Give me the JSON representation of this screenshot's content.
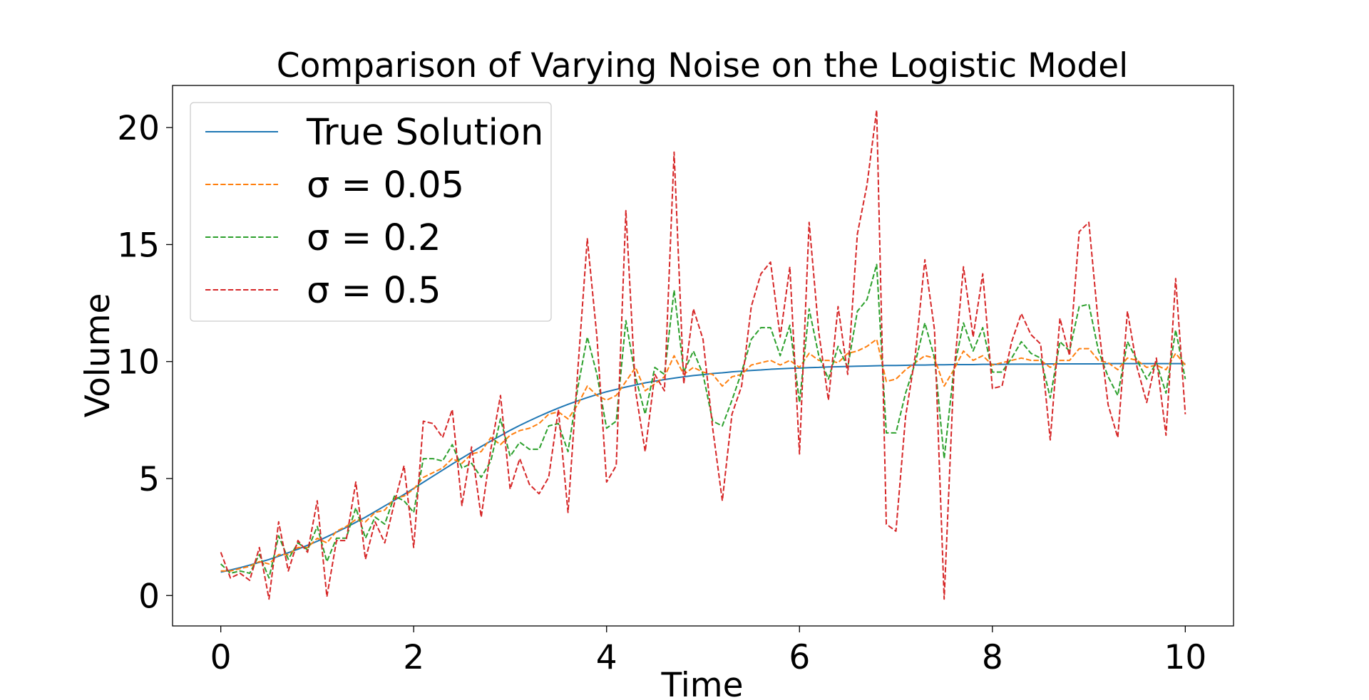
{
  "chart_data": {
    "type": "line",
    "title": "Comparison of Varying Noise on the Logistic Model",
    "xlabel": "Time",
    "ylabel": "Volume",
    "xlim": [
      -0.5,
      10.5
    ],
    "ylim": [
      -1.3,
      21.8
    ],
    "xticks": [
      0,
      2,
      4,
      6,
      8,
      10
    ],
    "yticks": [
      0,
      5,
      10,
      15,
      20
    ],
    "grid": false,
    "legend_position": "top-left",
    "x": [
      0.0,
      0.1,
      0.2,
      0.3,
      0.4,
      0.5,
      0.6,
      0.7,
      0.8,
      0.9,
      1.0,
      1.1,
      1.2,
      1.3,
      1.4,
      1.5,
      1.6,
      1.7,
      1.8,
      1.9,
      2.0,
      2.1,
      2.2,
      2.3,
      2.4,
      2.5,
      2.6,
      2.7,
      2.8,
      2.9,
      3.0,
      3.1,
      3.2,
      3.3,
      3.4,
      3.5,
      3.6,
      3.7,
      3.8,
      3.9,
      4.0,
      4.1,
      4.2,
      4.3,
      4.4,
      4.5,
      4.6,
      4.7,
      4.8,
      4.9,
      5.0,
      5.1,
      5.2,
      5.3,
      5.4,
      5.5,
      5.6,
      5.7,
      5.8,
      5.9,
      6.0,
      6.1,
      6.2,
      6.3,
      6.4,
      6.5,
      6.6,
      6.7,
      6.8,
      6.9,
      7.0,
      7.1,
      7.2,
      7.3,
      7.4,
      7.5,
      7.6,
      7.7,
      7.8,
      7.9,
      8.0,
      8.1,
      8.2,
      8.3,
      8.4,
      8.5,
      8.6,
      8.7,
      8.8,
      8.9,
      9.0,
      9.1,
      9.2,
      9.3,
      9.4,
      9.5,
      9.6,
      9.7,
      9.8,
      9.9,
      10.0
    ],
    "series": [
      {
        "name": "True Solution",
        "color": "#1f77b4",
        "style": "solid",
        "values": [
          1.0,
          1.09,
          1.19,
          1.3,
          1.42,
          1.54,
          1.68,
          1.83,
          1.98,
          2.15,
          2.32,
          2.51,
          2.71,
          2.91,
          3.13,
          3.35,
          3.59,
          3.83,
          4.07,
          4.32,
          4.58,
          4.84,
          5.1,
          5.36,
          5.62,
          5.87,
          6.12,
          6.37,
          6.6,
          6.83,
          7.06,
          7.27,
          7.47,
          7.66,
          7.84,
          8.01,
          8.17,
          8.32,
          8.46,
          8.59,
          8.71,
          8.81,
          8.91,
          9.0,
          9.09,
          9.16,
          9.23,
          9.29,
          9.35,
          9.4,
          9.44,
          9.49,
          9.52,
          9.56,
          9.59,
          9.62,
          9.64,
          9.67,
          9.69,
          9.71,
          9.72,
          9.74,
          9.75,
          9.77,
          9.78,
          9.79,
          9.8,
          9.81,
          9.82,
          9.83,
          9.83,
          9.84,
          9.85,
          9.85,
          9.86,
          9.86,
          9.87,
          9.87,
          9.87,
          9.88,
          9.88,
          9.88,
          9.89,
          9.89,
          9.89,
          9.89,
          9.9,
          9.9,
          9.9,
          9.9,
          9.9,
          9.9,
          9.91,
          9.91,
          9.91,
          9.91,
          9.91,
          9.91,
          9.91,
          9.91,
          9.91
        ]
      },
      {
        "name": "σ = 0.05",
        "color": "#ff7f0e",
        "style": "dashed",
        "values": [
          1.05,
          1.05,
          1.15,
          1.25,
          1.45,
          1.35,
          1.75,
          1.75,
          2.05,
          2.05,
          2.45,
          2.25,
          2.75,
          2.95,
          3.25,
          3.15,
          3.55,
          3.65,
          4.15,
          4.25,
          4.55,
          5.05,
          5.25,
          5.45,
          5.85,
          5.65,
          6.05,
          6.15,
          6.75,
          6.45,
          6.85,
          7.05,
          7.15,
          7.35,
          7.75,
          7.85,
          7.55,
          8.15,
          8.95,
          8.55,
          8.35,
          8.55,
          9.15,
          9.75,
          8.75,
          9.05,
          9.35,
          10.25,
          9.45,
          9.75,
          9.55,
          9.45,
          8.95,
          9.35,
          9.45,
          9.85,
          9.95,
          10.05,
          9.85,
          10.05,
          9.75,
          10.35,
          10.05,
          10.05,
          9.95,
          10.35,
          10.45,
          10.65,
          10.95,
          9.15,
          9.25,
          9.65,
          9.95,
          10.25,
          10.15,
          8.95,
          9.65,
          10.45,
          10.05,
          10.25,
          9.85,
          9.95,
          10.05,
          10.15,
          10.05,
          10.05,
          9.75,
          10.05,
          10.05,
          10.55,
          10.55,
          10.05,
          9.95,
          9.65,
          10.15,
          10.05,
          9.75,
          9.85,
          9.65,
          10.35,
          9.85
        ]
      },
      {
        "name": "σ = 0.2",
        "color": "#2ca02c",
        "style": "dashed",
        "values": [
          1.35,
          0.95,
          1.05,
          0.95,
          1.75,
          0.75,
          2.55,
          1.55,
          2.25,
          1.95,
          2.95,
          1.45,
          2.45,
          2.45,
          3.75,
          2.45,
          3.35,
          3.05,
          4.25,
          4.05,
          3.55,
          5.85,
          5.85,
          5.75,
          6.45,
          5.45,
          5.65,
          5.05,
          5.75,
          7.55,
          5.95,
          6.55,
          6.25,
          6.25,
          7.25,
          7.35,
          6.15,
          8.85,
          11.05,
          9.45,
          7.15,
          7.45,
          11.75,
          9.35,
          7.75,
          9.75,
          9.45,
          13.05,
          9.55,
          10.45,
          9.45,
          7.45,
          7.25,
          8.35,
          9.55,
          10.95,
          11.45,
          11.45,
          10.25,
          11.55,
          8.25,
          12.25,
          10.25,
          9.25,
          10.65,
          9.75,
          12.15,
          12.65,
          14.15,
          6.95,
          6.95,
          8.65,
          9.95,
          11.65,
          10.15,
          5.85,
          9.65,
          11.65,
          10.45,
          11.45,
          9.55,
          9.55,
          10.15,
          10.85,
          10.35,
          10.15,
          8.45,
          10.85,
          10.45,
          12.35,
          12.45,
          10.45,
          9.35,
          8.55,
          10.85,
          10.05,
          9.25,
          9.95,
          8.65,
          11.35,
          9.25
        ]
      },
      {
        "name": "σ = 0.5",
        "color": "#d62728",
        "style": "dashed",
        "values": [
          1.85,
          0.75,
          0.95,
          0.65,
          2.05,
          -0.15,
          3.15,
          1.05,
          2.35,
          1.85,
          4.05,
          -0.05,
          2.35,
          2.35,
          4.85,
          1.55,
          3.15,
          2.25,
          3.95,
          5.55,
          2.05,
          7.45,
          7.35,
          6.75,
          7.95,
          3.85,
          6.35,
          3.35,
          6.25,
          8.55,
          4.55,
          5.85,
          4.75,
          4.35,
          5.05,
          7.95,
          3.55,
          9.55,
          15.25,
          11.05,
          4.85,
          5.55,
          16.45,
          8.75,
          6.15,
          9.45,
          8.75,
          18.95,
          9.05,
          12.25,
          10.95,
          7.15,
          4.05,
          7.75,
          8.95,
          12.35,
          13.75,
          14.25,
          11.05,
          14.05,
          6.05,
          15.95,
          11.25,
          8.35,
          12.35,
          9.45,
          15.45,
          17.55,
          20.75,
          3.05,
          2.75,
          7.65,
          10.25,
          14.35,
          11.35,
          -0.15,
          9.45,
          14.05,
          11.05,
          13.75,
          8.85,
          8.95,
          10.85,
          12.05,
          11.15,
          10.75,
          6.65,
          11.85,
          10.25,
          15.55,
          15.95,
          11.55,
          8.15,
          6.75,
          12.15,
          9.75,
          8.25,
          10.15,
          6.85,
          13.55,
          7.75
        ]
      }
    ]
  }
}
